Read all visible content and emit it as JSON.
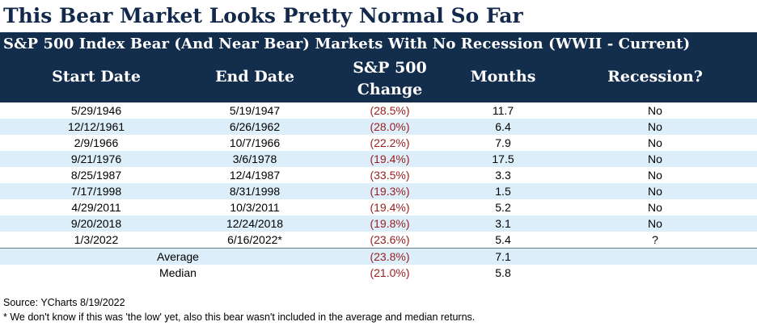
{
  "title": "This Bear Market Looks Pretty Normal So Far",
  "chart_data": {
    "type": "table",
    "subtitle": "S&P 500 Index Bear (And Near Bear) Markets With No Recession (WWII - Current)",
    "headers": {
      "start": "Start Date",
      "end": "End Date",
      "change_line1": "S&P 500",
      "change_line2": "Change",
      "months": "Months",
      "recession": "Recession?"
    },
    "rows": [
      {
        "start": "5/29/1946",
        "end": "5/19/1947",
        "change": "(28.5%)",
        "months": "11.7",
        "recession": "No"
      },
      {
        "start": "12/12/1961",
        "end": "6/26/1962",
        "change": "(28.0%)",
        "months": "6.4",
        "recession": "No"
      },
      {
        "start": "2/9/1966",
        "end": "10/7/1966",
        "change": "(22.2%)",
        "months": "7.9",
        "recession": "No"
      },
      {
        "start": "9/21/1976",
        "end": "3/6/1978",
        "change": "(19.4%)",
        "months": "17.5",
        "recession": "No"
      },
      {
        "start": "8/25/1987",
        "end": "12/4/1987",
        "change": "(33.5%)",
        "months": "3.3",
        "recession": "No"
      },
      {
        "start": "7/17/1998",
        "end": "8/31/1998",
        "change": "(19.3%)",
        "months": "1.5",
        "recession": "No"
      },
      {
        "start": "4/29/2011",
        "end": "10/3/2011",
        "change": "(19.4%)",
        "months": "5.2",
        "recession": "No"
      },
      {
        "start": "9/20/2018",
        "end": "12/24/2018",
        "change": "(19.8%)",
        "months": "3.1",
        "recession": "No"
      },
      {
        "start": "1/3/2022",
        "end": "6/16/2022*",
        "change": "(23.6%)",
        "months": "5.4",
        "recession": "?"
      }
    ],
    "summary": [
      {
        "label": "Average",
        "change": "(23.8%)",
        "months": "7.1"
      },
      {
        "label": "Median",
        "change": "(21.0%)",
        "months": "5.8"
      }
    ]
  },
  "notes": {
    "source": "Source: YCharts 8/19/2022",
    "footnote": "* We don't know if this was 'the low' yet, also this bear wasn't included in the average and median returns."
  },
  "colors": {
    "header_bg": "#132d4d",
    "stripe": "#dbeefa",
    "negative": "#9b1c1c",
    "title": "#13294b"
  }
}
